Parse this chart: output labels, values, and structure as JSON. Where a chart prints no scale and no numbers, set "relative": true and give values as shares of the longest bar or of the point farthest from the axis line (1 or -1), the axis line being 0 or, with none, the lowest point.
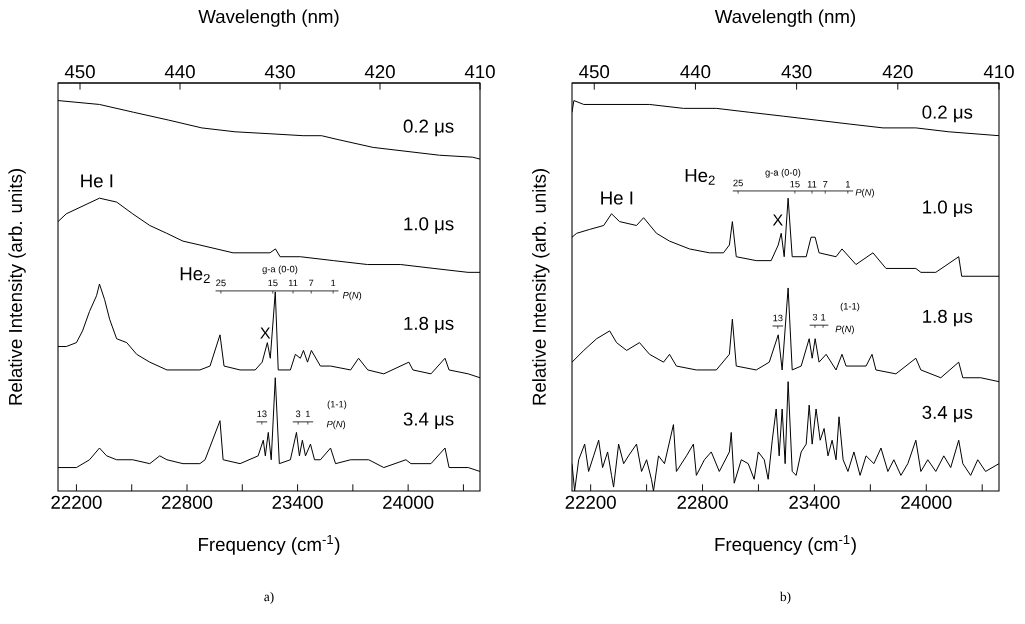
{
  "chart_data": [
    {
      "type": "line",
      "xlabel": "Frequency (cm$^{-1}$)",
      "ylabel": "Relative Intensity (arb. units)",
      "x2label": "Wavelength (nm)",
      "relative": true,
      "xlim": [
        22100,
        24390
      ],
      "xticks": [
        22200,
        {
          "value": 22500,
          "label": null
        },
        22800,
        {
          "value": 23100,
          "label": null
        },
        23400,
        {
          "value": 23700,
          "label": null
        },
        24000,
        {
          "value": 24300,
          "label": null
        }
      ],
      "x2lim": [
        452.2,
        410
      ],
      "x2ticks": [
        450,
        440,
        430,
        420,
        410
      ],
      "series": [
        {
          "name": "0.2 μs",
          "color": "#000000",
          "x": [
            22100,
            22325,
            22510,
            22700,
            22880,
            23060,
            23250,
            23430,
            23530,
            23620,
            23810,
            23990,
            24170,
            24350,
            24390
          ],
          "values": [
            1.0,
            0.99,
            0.97,
            0.95,
            0.93,
            0.92,
            0.915,
            0.91,
            0.91,
            0.9,
            0.88,
            0.87,
            0.86,
            0.855,
            0.85
          ]
        },
        {
          "name": "1.0 μs",
          "color": "#000000",
          "x": [
            22100,
            22145,
            22325,
            22418,
            22505,
            22598,
            22690,
            22778,
            22870,
            23050,
            23250,
            23280,
            23305,
            23415,
            23595,
            23780,
            23960,
            24140,
            24325,
            24390
          ],
          "values": [
            0.69,
            0.71,
            0.75,
            0.74,
            0.71,
            0.68,
            0.66,
            0.64,
            0.63,
            0.61,
            0.61,
            0.62,
            0.6,
            0.6,
            0.59,
            0.58,
            0.58,
            0.57,
            0.56,
            0.56
          ]
        },
        {
          "name": "1.8 μs",
          "color": "#000000",
          "x": [
            22100,
            22145,
            22200,
            22233,
            22271,
            22309,
            22325,
            22353,
            22380,
            22418,
            22473,
            22527,
            22598,
            22691,
            22778,
            22870,
            22925,
            22979,
            23001,
            23088,
            23170,
            23208,
            23236,
            23252,
            23279,
            23295,
            23361,
            23388,
            23415,
            23432,
            23454,
            23475,
            23524,
            23579,
            23688,
            23731,
            23781,
            23868,
            24004,
            24026,
            24124,
            24200,
            24222,
            24326,
            24390
          ],
          "values": [
            0.37,
            0.37,
            0.38,
            0.41,
            0.46,
            0.5,
            0.53,
            0.49,
            0.44,
            0.39,
            0.38,
            0.35,
            0.33,
            0.31,
            0.31,
            0.31,
            0.32,
            0.4,
            0.32,
            0.31,
            0.31,
            0.33,
            0.38,
            0.34,
            0.51,
            0.31,
            0.31,
            0.35,
            0.34,
            0.36,
            0.33,
            0.36,
            0.32,
            0.32,
            0.31,
            0.34,
            0.31,
            0.3,
            0.33,
            0.31,
            0.3,
            0.34,
            0.31,
            0.3,
            0.29
          ]
        },
        {
          "name": "3.4 μs",
          "color": "#000000",
          "x": [
            22100,
            22200,
            22271,
            22325,
            22364,
            22418,
            22505,
            22598,
            22652,
            22691,
            22778,
            22870,
            22898,
            22979,
            22996,
            23088,
            23186,
            23214,
            23225,
            23241,
            23257,
            23279,
            23301,
            23361,
            23394,
            23410,
            23426,
            23443,
            23470,
            23492,
            23524,
            23579,
            23606,
            23688,
            23731,
            23786,
            23868,
            23988,
            24015,
            24124,
            24200,
            24222,
            24326,
            24390
          ],
          "values": [
            0.06,
            0.06,
            0.08,
            0.11,
            0.09,
            0.08,
            0.08,
            0.07,
            0.09,
            0.08,
            0.07,
            0.07,
            0.08,
            0.18,
            0.08,
            0.07,
            0.09,
            0.13,
            0.09,
            0.15,
            0.08,
            0.29,
            0.07,
            0.08,
            0.15,
            0.09,
            0.13,
            0.09,
            0.12,
            0.08,
            0.08,
            0.11,
            0.07,
            0.08,
            0.08,
            0.08,
            0.06,
            0.08,
            0.07,
            0.07,
            0.11,
            0.06,
            0.06,
            0.05
          ]
        }
      ],
      "annotations": [
        "He I",
        "He$_{2}$",
        "25",
        "g-a (0-0)",
        "15",
        "11",
        "7",
        "1",
        "*P*(*N*)",
        "X",
        "13",
        "3",
        "1",
        "(1-1)",
        "*P*(*N*)",
        "a)"
      ]
    },
    {
      "type": "line",
      "xlabel": "Frequency (cm$^{-1}$)",
      "ylabel": "Relative Intensity (arb. units)",
      "x2label": "Wavelength (nm)",
      "relative": true,
      "xlim": [
        22100,
        24390
      ],
      "xticks": [
        22200,
        {
          "value": 22500,
          "label": null
        },
        22800,
        {
          "value": 23100,
          "label": null
        },
        23400,
        {
          "value": 23700,
          "label": null
        },
        24000,
        {
          "value": 24300,
          "label": null
        }
      ],
      "x2lim": [
        452.2,
        410
      ],
      "x2ticks": [
        450,
        440,
        430,
        420,
        410
      ],
      "series": [
        {
          "name": "0.2 μs",
          "color": "#000000",
          "x": [
            22100,
            22110,
            22163,
            22339,
            22516,
            22698,
            22874,
            23051,
            23233,
            23409,
            23586,
            23768,
            23944,
            24121,
            24390
          ],
          "values": [
            0.97,
            1.0,
            0.99,
            0.99,
            0.99,
            0.98,
            0.98,
            0.97,
            0.96,
            0.95,
            0.94,
            0.93,
            0.93,
            0.92,
            0.91
          ]
        },
        {
          "name": "1.0 μs",
          "color": "#000000",
          "x": [
            22100,
            22125,
            22195,
            22270,
            22312,
            22355,
            22446,
            22484,
            22553,
            22623,
            22730,
            22837,
            22912,
            22944,
            22960,
            22981,
            23088,
            23168,
            23206,
            23222,
            23238,
            23259,
            23281,
            23356,
            23382,
            23404,
            23425,
            23516,
            23548,
            23623,
            23714,
            23784,
            23944,
            23971,
            24051,
            24174,
            24190,
            24265,
            24390
          ],
          "values": [
            0.65,
            0.66,
            0.67,
            0.68,
            0.71,
            0.69,
            0.68,
            0.7,
            0.66,
            0.64,
            0.62,
            0.61,
            0.61,
            0.63,
            0.69,
            0.6,
            0.59,
            0.59,
            0.63,
            0.66,
            0.6,
            0.75,
            0.6,
            0.6,
            0.65,
            0.65,
            0.61,
            0.6,
            0.62,
            0.58,
            0.61,
            0.57,
            0.57,
            0.56,
            0.56,
            0.6,
            0.55,
            0.55,
            0.55
          ]
        },
        {
          "name": "1.8 μs",
          "color": "#000000",
          "x": [
            22100,
            22163,
            22232,
            22302,
            22339,
            22393,
            22462,
            22516,
            22591,
            22623,
            22660,
            22767,
            22874,
            22944,
            22960,
            22981,
            23088,
            23158,
            23206,
            23227,
            23259,
            23281,
            23329,
            23372,
            23388,
            23404,
            23425,
            23463,
            23516,
            23548,
            23570,
            23677,
            23709,
            23730,
            23837,
            23944,
            23971,
            24078,
            24174,
            24196,
            24292,
            24390
          ],
          "values": [
            0.33,
            0.36,
            0.39,
            0.41,
            0.38,
            0.36,
            0.38,
            0.35,
            0.33,
            0.35,
            0.32,
            0.31,
            0.31,
            0.35,
            0.44,
            0.32,
            0.31,
            0.33,
            0.4,
            0.31,
            0.52,
            0.31,
            0.32,
            0.39,
            0.34,
            0.39,
            0.33,
            0.35,
            0.31,
            0.35,
            0.32,
            0.32,
            0.35,
            0.31,
            0.3,
            0.34,
            0.31,
            0.29,
            0.33,
            0.29,
            0.29,
            0.28
          ]
        },
        {
          "name": "3.4 μs",
          "color": "#000000",
          "x": [
            22100,
            22114,
            22136,
            22168,
            22189,
            22216,
            22243,
            22264,
            22291,
            22312,
            22323,
            22350,
            22377,
            22403,
            22446,
            22473,
            22500,
            22526,
            22537,
            22564,
            22596,
            22644,
            22660,
            22714,
            22751,
            22767,
            22810,
            22847,
            22890,
            22944,
            22954,
            22970,
            23008,
            23045,
            23077,
            23099,
            23131,
            23152,
            23174,
            23195,
            23211,
            23227,
            23243,
            23259,
            23281,
            23302,
            23329,
            23356,
            23372,
            23388,
            23409,
            23431,
            23452,
            23473,
            23495,
            23516,
            23532,
            23554,
            23580,
            23612,
            23645,
            23677,
            23719,
            23757,
            23794,
            23826,
            23864,
            23901,
            23944,
            23971,
            24008,
            24051,
            24094,
            24131,
            24174,
            24196,
            24238,
            24276,
            24318,
            24390
          ],
          "values": [
            0.07,
            0,
            0.08,
            0.12,
            0.05,
            0.09,
            0.13,
            0.06,
            0.1,
            0.04,
            0.01,
            0.12,
            0.07,
            0.09,
            0.12,
            0.05,
            0.08,
            0.03,
            0,
            0.09,
            0.07,
            0.17,
            0.05,
            0.09,
            0.12,
            0.04,
            0.08,
            0.1,
            0.05,
            0.1,
            0.15,
            0.02,
            0.08,
            0.07,
            0.03,
            0.1,
            0.08,
            0.03,
            0.13,
            0.21,
            0.09,
            0.21,
            0.07,
            0.28,
            0.05,
            0.04,
            0.1,
            0.12,
            0.22,
            0.12,
            0.21,
            0.13,
            0.16,
            0.09,
            0.13,
            0.08,
            0.19,
            0.08,
            0.05,
            0.1,
            0.04,
            0.09,
            0.07,
            0.11,
            0.05,
            0.08,
            0.04,
            0.07,
            0.13,
            0.05,
            0.08,
            0.05,
            0.09,
            0.06,
            0.13,
            0.07,
            0.04,
            0.08,
            0.05,
            0.07
          ]
        }
      ],
      "annotations": [
        "He I",
        "He$_{2}$",
        "25",
        "g-a (0-0)",
        "15",
        "11",
        "7",
        "1",
        "*P*(*N*)",
        "X",
        "13",
        "3",
        "1",
        "(1-1)",
        "*P*(*N*)",
        "b)"
      ]
    }
  ]
}
